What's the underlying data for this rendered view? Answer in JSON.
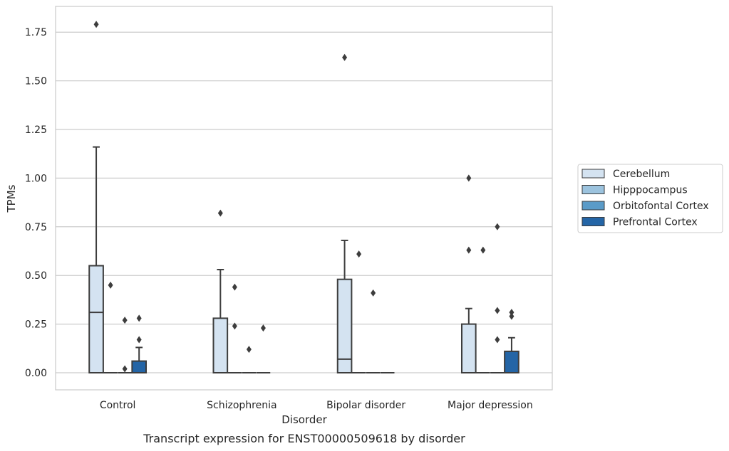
{
  "chart_data": {
    "type": "box",
    "title": "",
    "caption": "Transcript expression for ENST00000509618 by disorder",
    "xlabel": "Disorder",
    "ylabel": "TPMs",
    "ylim": [
      -0.08,
      1.88
    ],
    "yticks": [
      "0.00",
      "0.25",
      "0.50",
      "0.75",
      "1.00",
      "1.25",
      "1.50",
      "1.75"
    ],
    "grid": "horizontal",
    "legend_placement": "right",
    "categories": [
      "Control",
      "Schizophrenia",
      "Bipolar disorder",
      "Major depression"
    ],
    "series": [
      {
        "name": "Cerebellum",
        "color": "#d4e3f1",
        "boxes": [
          {
            "q1": 0.0,
            "median": 0.31,
            "q3": 0.55,
            "whisker_low": 0.0,
            "whisker_high": 1.16,
            "outliers": [
              1.79
            ]
          },
          {
            "q1": 0.0,
            "median": 0.0,
            "q3": 0.28,
            "whisker_low": 0.0,
            "whisker_high": 0.53,
            "outliers": [
              0.82
            ]
          },
          {
            "q1": 0.0,
            "median": 0.07,
            "q3": 0.48,
            "whisker_low": 0.0,
            "whisker_high": 0.68,
            "outliers": [
              1.62
            ]
          },
          {
            "q1": 0.0,
            "median": 0.0,
            "q3": 0.25,
            "whisker_low": 0.0,
            "whisker_high": 0.33,
            "outliers": [
              1.0,
              0.63
            ]
          }
        ]
      },
      {
        "name": "Hipppocampus",
        "color": "#9cc3de",
        "boxes": [
          {
            "q1": 0.0,
            "median": 0.0,
            "q3": 0.0,
            "whisker_low": 0.0,
            "whisker_high": 0.0,
            "outliers": [
              0.45
            ]
          },
          {
            "q1": 0.0,
            "median": 0.0,
            "q3": 0.0,
            "whisker_low": 0.0,
            "whisker_high": 0.0,
            "outliers": [
              0.44,
              0.24
            ]
          },
          {
            "q1": 0.0,
            "median": 0.0,
            "q3": 0.0,
            "whisker_low": 0.0,
            "whisker_high": 0.0,
            "outliers": [
              0.61
            ]
          },
          {
            "q1": 0.0,
            "median": 0.0,
            "q3": 0.0,
            "whisker_low": 0.0,
            "whisker_high": 0.0,
            "outliers": [
              0.63
            ]
          }
        ]
      },
      {
        "name": "Orbitofontal Cortex",
        "color": "#5a9bc8",
        "boxes": [
          {
            "q1": 0.0,
            "median": 0.0,
            "q3": 0.0,
            "whisker_low": 0.0,
            "whisker_high": 0.0,
            "outliers": [
              0.27,
              0.02
            ]
          },
          {
            "q1": 0.0,
            "median": 0.0,
            "q3": 0.0,
            "whisker_low": 0.0,
            "whisker_high": 0.0,
            "outliers": [
              0.12
            ]
          },
          {
            "q1": 0.0,
            "median": 0.0,
            "q3": 0.0,
            "whisker_low": 0.0,
            "whisker_high": 0.0,
            "outliers": [
              0.41
            ]
          },
          {
            "q1": 0.0,
            "median": 0.0,
            "q3": 0.0,
            "whisker_low": 0.0,
            "whisker_high": 0.0,
            "outliers": [
              0.75,
              0.32,
              0.17
            ]
          }
        ]
      },
      {
        "name": "Prefrontal Cortex",
        "color": "#2465a6",
        "boxes": [
          {
            "q1": 0.0,
            "median": 0.0,
            "q3": 0.06,
            "whisker_low": 0.0,
            "whisker_high": 0.13,
            "outliers": [
              0.28,
              0.17
            ]
          },
          {
            "q1": 0.0,
            "median": 0.0,
            "q3": 0.0,
            "whisker_low": 0.0,
            "whisker_high": 0.0,
            "outliers": [
              0.23
            ]
          },
          {
            "q1": 0.0,
            "median": 0.0,
            "q3": 0.0,
            "whisker_low": 0.0,
            "whisker_high": 0.0,
            "outliers": []
          },
          {
            "q1": 0.0,
            "median": 0.0,
            "q3": 0.11,
            "whisker_low": 0.0,
            "whisker_high": 0.18,
            "outliers": [
              0.31,
              0.29
            ]
          }
        ]
      }
    ]
  }
}
